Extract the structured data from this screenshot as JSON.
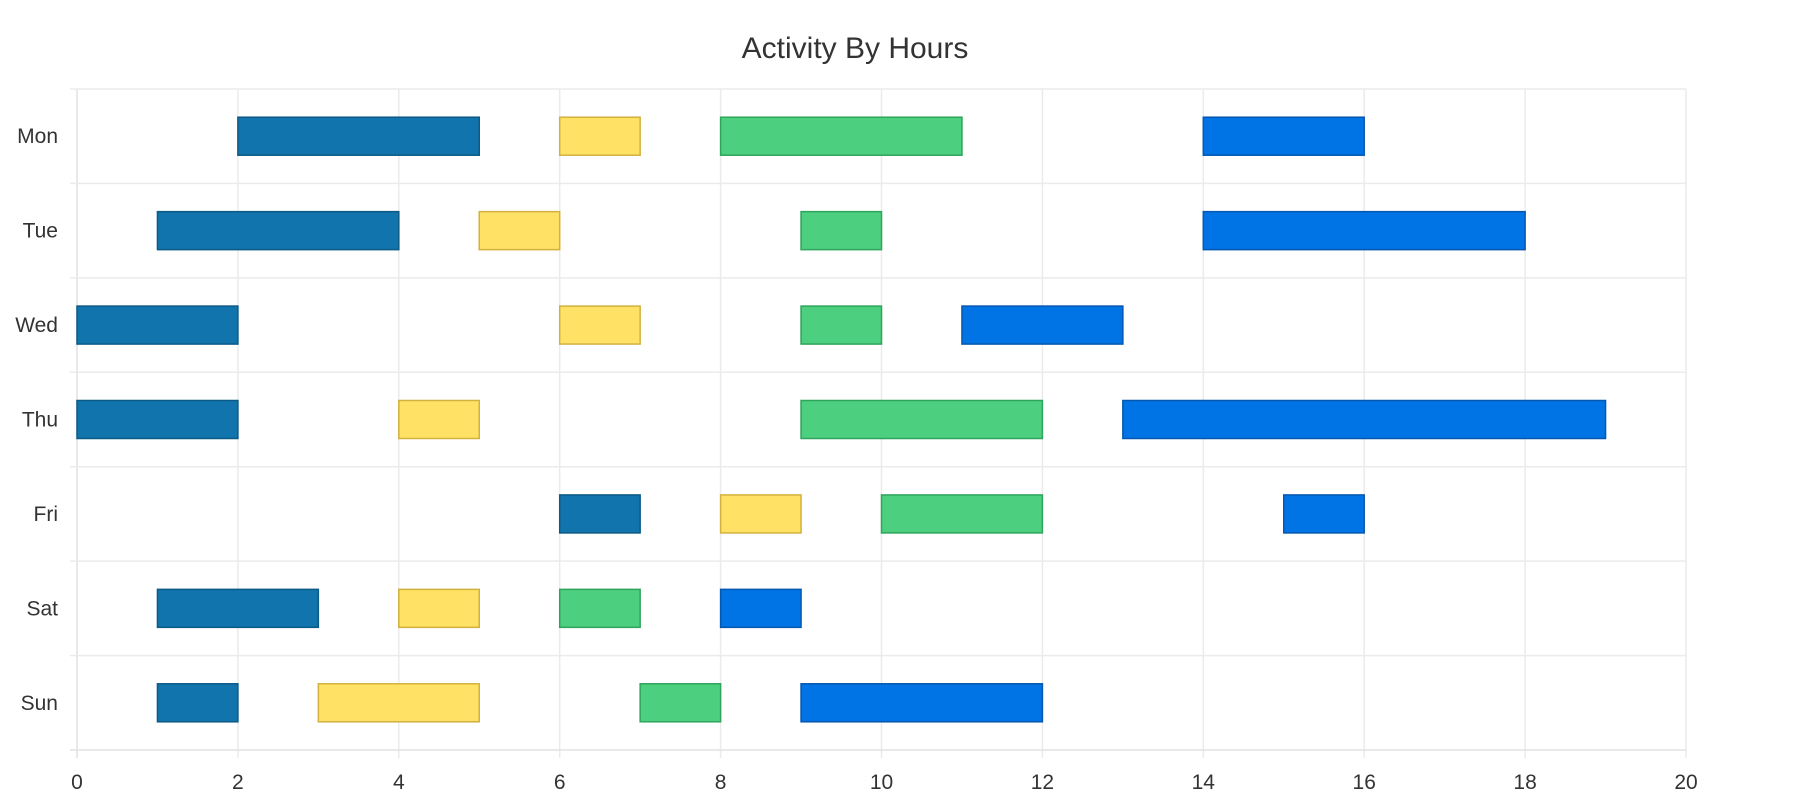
{
  "chart_data": {
    "type": "bar",
    "orientation": "horizontal-range",
    "title": "Activity By Hours",
    "xlabel": "",
    "ylabel": "",
    "xlim": [
      0,
      20
    ],
    "x_ticks": [
      0,
      2,
      4,
      6,
      8,
      10,
      12,
      14,
      16,
      18,
      20
    ],
    "categories": [
      "Mon",
      "Tue",
      "Wed",
      "Thu",
      "Fri",
      "Sat",
      "Sun"
    ],
    "grid": true,
    "legend": "none",
    "series": [
      {
        "color": "#1174ac",
        "border": "#0c5a86",
        "ranges": [
          [
            2,
            5
          ],
          [
            1,
            4
          ],
          [
            0,
            2
          ],
          [
            0,
            2
          ],
          [
            6,
            7
          ],
          [
            1,
            3
          ],
          [
            1,
            2
          ]
        ]
      },
      {
        "color": "#ffe265",
        "border": "#d2b13e",
        "ranges": [
          [
            6,
            7
          ],
          [
            5,
            6
          ],
          [
            6,
            7
          ],
          [
            4,
            5
          ],
          [
            8,
            9
          ],
          [
            4,
            5
          ],
          [
            3,
            5
          ]
        ]
      },
      {
        "color": "#4cd07f",
        "border": "#30a45d",
        "ranges": [
          [
            8,
            11
          ],
          [
            9,
            10
          ],
          [
            9,
            10
          ],
          [
            9,
            12
          ],
          [
            10,
            12
          ],
          [
            6,
            7
          ],
          [
            7,
            8
          ]
        ]
      },
      {
        "color": "#0074e4",
        "border": "#0458b0",
        "ranges": [
          [
            14,
            16
          ],
          [
            14,
            18
          ],
          [
            11,
            13
          ],
          [
            13,
            19
          ],
          [
            15,
            16
          ],
          [
            8,
            9
          ],
          [
            9,
            12
          ]
        ]
      }
    ]
  }
}
